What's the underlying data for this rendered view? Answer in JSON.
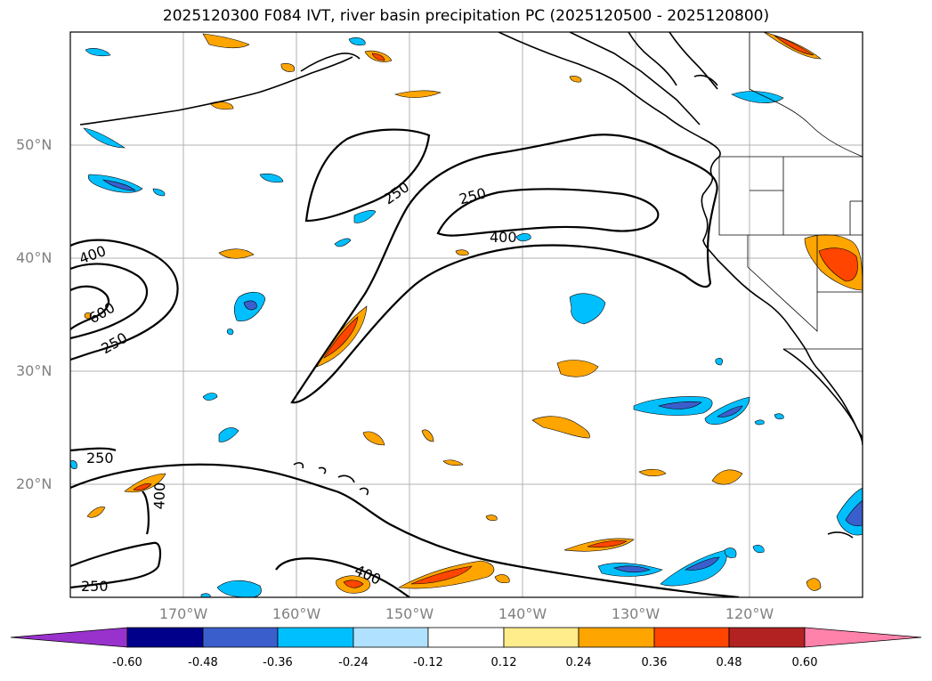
{
  "title": "2025120300 F084 IVT, river basin precipitation PC (2025120500 - 2025120800)",
  "map": {
    "extent": {
      "lon_min": -180,
      "lon_max": -110,
      "lat_min": 10,
      "lat_max": 60
    },
    "lat_labels": [
      "50°N",
      "40°N",
      "30°N",
      "20°N"
    ],
    "lon_labels": [
      "170°W",
      "160°W",
      "150°W",
      "140°W",
      "130°W",
      "120°W"
    ],
    "contour_labels": [
      "250",
      "250",
      "400",
      "400",
      "600",
      "250",
      "250",
      "400",
      "400",
      "250"
    ]
  },
  "colorbar": {
    "ticks": [
      "-0.60",
      "-0.48",
      "-0.36",
      "-0.24",
      "-0.12",
      "0.12",
      "0.24",
      "0.36",
      "0.48",
      "0.60"
    ],
    "colors": [
      "#9932cc",
      "#00008b",
      "#3a5fcd",
      "#00bfff",
      "#b0e2ff",
      "#ffffff",
      "#ffec8b",
      "#ffa500",
      "#ff4500",
      "#b22222",
      "#ff82ab"
    ]
  }
}
